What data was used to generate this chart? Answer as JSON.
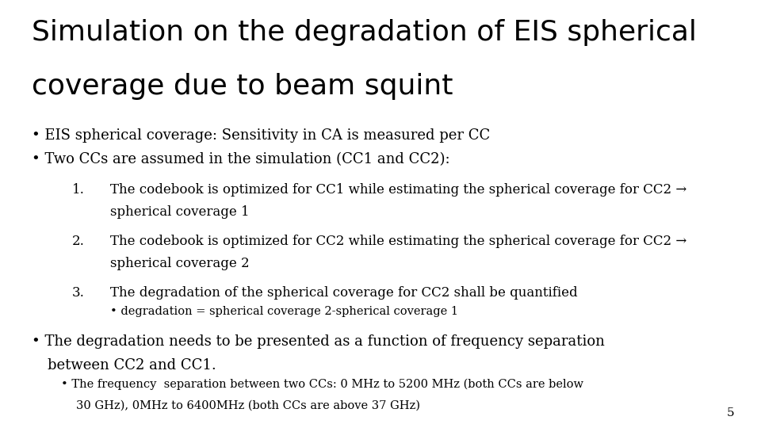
{
  "background_color": "#ffffff",
  "title_line1": "Simulation on the degradation of EIS spherical",
  "title_line2": "coverage due to beam squint",
  "title_fontsize": 26,
  "title_font": "DejaVu Sans",
  "body_font": "DejaVu Serif",
  "bullet1": "EIS spherical coverage: Sensitivity in CA is measured per CC",
  "bullet2": "Two CCs are assumed in the simulation (CC1 and CC2):",
  "item1_line1": "The codebook is optimized for CC1 while estimating the spherical coverage for CC2 →",
  "item1_line2": "spherical coverage 1",
  "item2_line1": "The codebook is optimized for CC2 while estimating the spherical coverage for CC2 →",
  "item2_line2": "spherical coverage 2",
  "item3_line1": "The degradation of the spherical coverage for CC2 shall be quantified",
  "item3_sub": "degradation = spherical coverage 2-spherical coverage 1",
  "bullet3_line1": "The degradation needs to be presented as a function of frequency separation",
  "bullet3_line2": "between CC2 and CC1.",
  "bullet3_sub_line1": "The frequency  separation between two CCs: 0 MHz to 5200 MHz (both CCs are below",
  "bullet3_sub_line2": "30 GHz), 0MHz to 6400MHz (both CCs are above 37 GHz)",
  "page_number": "5",
  "text_color": "#000000",
  "title_color": "#000000",
  "title_weight": "light",
  "body_fs": 13.0,
  "sub_fs": 12.0,
  "subsub_fs": 10.5
}
